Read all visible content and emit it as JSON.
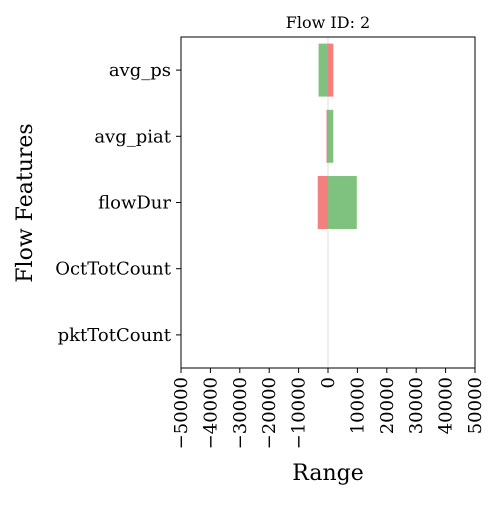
{
  "chart_data": {
    "type": "bar",
    "title": "Flow ID: 2",
    "xlabel": "Range",
    "ylabel": "Flow Features",
    "xlim": [
      -50000,
      50000
    ],
    "xticks": [
      -50000,
      -40000,
      -30000,
      -20000,
      -10000,
      0,
      10000,
      20000,
      30000,
      40000,
      50000
    ],
    "xtick_labels": [
      "−50000",
      "−40000",
      "−30000",
      "−20000",
      "−10000",
      "0",
      "10000",
      "20000",
      "30000",
      "40000",
      "50000"
    ],
    "categories": [
      "avg_ps",
      "avg_piat",
      "flowDur",
      "OctTotCount",
      "pktTotCount"
    ],
    "series": [
      {
        "color": "#7fc27f",
        "bars": [
          {
            "start": -3200,
            "end": 0
          },
          {
            "start": 0,
            "end": 1800
          },
          {
            "start": 0,
            "end": 9800
          },
          {
            "start": 0,
            "end": 0
          },
          {
            "start": 0,
            "end": 0
          }
        ]
      },
      {
        "color": "#f47f7f",
        "bars": [
          {
            "start": 0,
            "end": 1800
          },
          {
            "start": -500,
            "end": 0
          },
          {
            "start": -3500,
            "end": 0
          },
          {
            "start": 0,
            "end": 0
          },
          {
            "start": 0,
            "end": 0
          }
        ]
      }
    ],
    "zero_line_color": "#dddddd",
    "grid": false
  }
}
